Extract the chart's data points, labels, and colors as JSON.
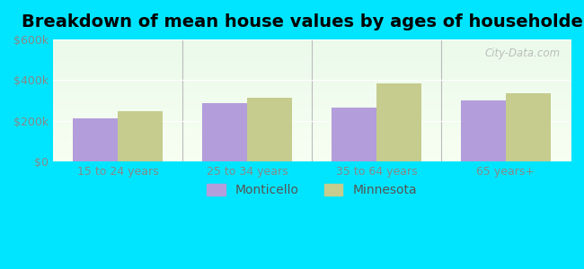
{
  "title": "Breakdown of mean house values by ages of householders",
  "categories": [
    "15 to 24 years",
    "25 to 34 years",
    "35 to 64 years",
    "65 years+"
  ],
  "monticello_values": [
    210000,
    285000,
    265000,
    300000
  ],
  "minnesota_values": [
    248000,
    315000,
    385000,
    335000
  ],
  "bar_color_monticello": "#b39ddb",
  "bar_color_minnesota": "#c5cc8e",
  "ylim": [
    0,
    600000
  ],
  "yticks": [
    0,
    200000,
    400000,
    600000
  ],
  "ytick_labels": [
    "$0",
    "$200k",
    "$400k",
    "$600k"
  ],
  "legend_labels": [
    "Monticello",
    "Minnesota"
  ],
  "background_color": "#00e5ff",
  "watermark": "City-Data.com",
  "bar_width": 0.35,
  "title_fontsize": 14,
  "tick_fontsize": 9,
  "legend_fontsize": 10
}
